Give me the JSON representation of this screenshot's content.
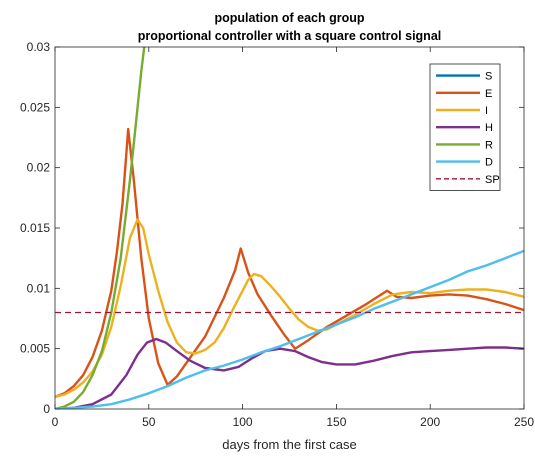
{
  "chart_data": {
    "type": "line",
    "title": [
      "population of each group",
      "proportional controller with a square control signal"
    ],
    "xlabel": "days from the first case",
    "ylabel": "",
    "xlim": [
      0,
      250
    ],
    "ylim": [
      0,
      0.03
    ],
    "x_ticks": [
      0,
      50,
      100,
      150,
      200,
      250
    ],
    "x_tick_labels": [
      "0",
      "50",
      "100",
      "150",
      "200",
      "250"
    ],
    "y_ticks": [
      0,
      0.005,
      0.01,
      0.015,
      0.02,
      0.025,
      0.03
    ],
    "y_tick_labels": [
      "0",
      "0.005",
      "0.01",
      "0.015",
      "0.02",
      "0.025",
      "0.03"
    ],
    "grid": false,
    "legend_position": "top-right",
    "series": [
      {
        "name": "S",
        "color": "#0072BD",
        "style": "solid",
        "points": []
      },
      {
        "name": "E",
        "color": "#D95319",
        "style": "solid",
        "points": [
          [
            0,
            0.001
          ],
          [
            5,
            0.0013
          ],
          [
            10,
            0.0019
          ],
          [
            15,
            0.0028
          ],
          [
            20,
            0.0043
          ],
          [
            25,
            0.0065
          ],
          [
            30,
            0.0098
          ],
          [
            33,
            0.013
          ],
          [
            36,
            0.017
          ],
          [
            39,
            0.0232
          ],
          [
            42,
            0.019
          ],
          [
            46,
            0.0125
          ],
          [
            50,
            0.0075
          ],
          [
            55,
            0.0038
          ],
          [
            60,
            0.002
          ],
          [
            65,
            0.0027
          ],
          [
            70,
            0.0038
          ],
          [
            80,
            0.006
          ],
          [
            90,
            0.0092
          ],
          [
            96,
            0.0115
          ],
          [
            99,
            0.0133
          ],
          [
            103,
            0.0113
          ],
          [
            108,
            0.0095
          ],
          [
            115,
            0.0078
          ],
          [
            122,
            0.0062
          ],
          [
            128,
            0.005
          ],
          [
            135,
            0.0057
          ],
          [
            145,
            0.0068
          ],
          [
            155,
            0.0077
          ],
          [
            165,
            0.0086
          ],
          [
            172,
            0.0093
          ],
          [
            177,
            0.0098
          ],
          [
            182,
            0.0093
          ],
          [
            190,
            0.0092
          ],
          [
            200,
            0.0094
          ],
          [
            210,
            0.0095
          ],
          [
            220,
            0.0094
          ],
          [
            230,
            0.0091
          ],
          [
            240,
            0.0087
          ],
          [
            250,
            0.0082
          ]
        ]
      },
      {
        "name": "I",
        "color": "#EDB120",
        "style": "solid",
        "points": [
          [
            0,
            0.001
          ],
          [
            5,
            0.0012
          ],
          [
            10,
            0.0016
          ],
          [
            15,
            0.0022
          ],
          [
            20,
            0.0031
          ],
          [
            25,
            0.0045
          ],
          [
            30,
            0.0068
          ],
          [
            35,
            0.0102
          ],
          [
            40,
            0.0142
          ],
          [
            44,
            0.0157
          ],
          [
            47,
            0.015
          ],
          [
            50,
            0.0128
          ],
          [
            55,
            0.0098
          ],
          [
            60,
            0.0072
          ],
          [
            65,
            0.0055
          ],
          [
            70,
            0.0047
          ],
          [
            75,
            0.0046
          ],
          [
            80,
            0.0049
          ],
          [
            85,
            0.0055
          ],
          [
            90,
            0.0067
          ],
          [
            95,
            0.0083
          ],
          [
            100,
            0.0098
          ],
          [
            103,
            0.0107
          ],
          [
            106,
            0.0112
          ],
          [
            110,
            0.011
          ],
          [
            115,
            0.0102
          ],
          [
            120,
            0.0093
          ],
          [
            125,
            0.0083
          ],
          [
            130,
            0.0074
          ],
          [
            135,
            0.0068
          ],
          [
            140,
            0.0065
          ],
          [
            145,
            0.0066
          ],
          [
            150,
            0.007
          ],
          [
            160,
            0.0078
          ],
          [
            170,
            0.0087
          ],
          [
            180,
            0.0095
          ],
          [
            190,
            0.0097
          ],
          [
            200,
            0.0096
          ],
          [
            210,
            0.0098
          ],
          [
            220,
            0.0099
          ],
          [
            230,
            0.0099
          ],
          [
            240,
            0.0097
          ],
          [
            250,
            0.0093
          ]
        ]
      },
      {
        "name": "H",
        "color": "#7E2F8E",
        "style": "solid",
        "points": [
          [
            0,
            0
          ],
          [
            10,
            0.0001
          ],
          [
            20,
            0.0004
          ],
          [
            30,
            0.0012
          ],
          [
            38,
            0.0028
          ],
          [
            44,
            0.0045
          ],
          [
            49,
            0.0055
          ],
          [
            54,
            0.0058
          ],
          [
            59,
            0.0055
          ],
          [
            65,
            0.0048
          ],
          [
            72,
            0.004
          ],
          [
            80,
            0.0034
          ],
          [
            90,
            0.0032
          ],
          [
            98,
            0.0035
          ],
          [
            105,
            0.0042
          ],
          [
            112,
            0.0048
          ],
          [
            120,
            0.005
          ],
          [
            128,
            0.0048
          ],
          [
            135,
            0.0043
          ],
          [
            142,
            0.0039
          ],
          [
            150,
            0.0037
          ],
          [
            160,
            0.0037
          ],
          [
            170,
            0.004
          ],
          [
            180,
            0.0044
          ],
          [
            190,
            0.0047
          ],
          [
            200,
            0.0048
          ],
          [
            210,
            0.0049
          ],
          [
            220,
            0.005
          ],
          [
            230,
            0.0051
          ],
          [
            240,
            0.0051
          ],
          [
            250,
            0.005
          ]
        ]
      },
      {
        "name": "R",
        "color": "#77AC30",
        "style": "solid",
        "points": [
          [
            0,
            0
          ],
          [
            5,
            0.0002
          ],
          [
            10,
            0.0006
          ],
          [
            15,
            0.0014
          ],
          [
            20,
            0.0028
          ],
          [
            25,
            0.0048
          ],
          [
            30,
            0.008
          ],
          [
            35,
            0.0125
          ],
          [
            40,
            0.019
          ],
          [
            43,
            0.0235
          ],
          [
            46,
            0.028
          ],
          [
            48,
            0.0305
          ]
        ]
      },
      {
        "name": "D",
        "color": "#4DBEEE",
        "style": "solid",
        "points": [
          [
            0,
            0
          ],
          [
            10,
            0.0001
          ],
          [
            20,
            0.0002
          ],
          [
            30,
            0.0004
          ],
          [
            40,
            0.0008
          ],
          [
            50,
            0.0013
          ],
          [
            60,
            0.0019
          ],
          [
            70,
            0.0026
          ],
          [
            80,
            0.0032
          ],
          [
            90,
            0.0036
          ],
          [
            100,
            0.0041
          ],
          [
            110,
            0.0047
          ],
          [
            120,
            0.0052
          ],
          [
            130,
            0.0058
          ],
          [
            140,
            0.0064
          ],
          [
            150,
            0.007
          ],
          [
            160,
            0.0076
          ],
          [
            170,
            0.0083
          ],
          [
            180,
            0.0089
          ],
          [
            190,
            0.0095
          ],
          [
            200,
            0.0101
          ],
          [
            210,
            0.0107
          ],
          [
            220,
            0.0114
          ],
          [
            230,
            0.0119
          ],
          [
            240,
            0.0125
          ],
          [
            250,
            0.0131
          ]
        ]
      },
      {
        "name": "SP",
        "color": "#A2142F",
        "style": "dashed",
        "points": [
          [
            0,
            0.008
          ],
          [
            250,
            0.008
          ]
        ]
      }
    ]
  }
}
